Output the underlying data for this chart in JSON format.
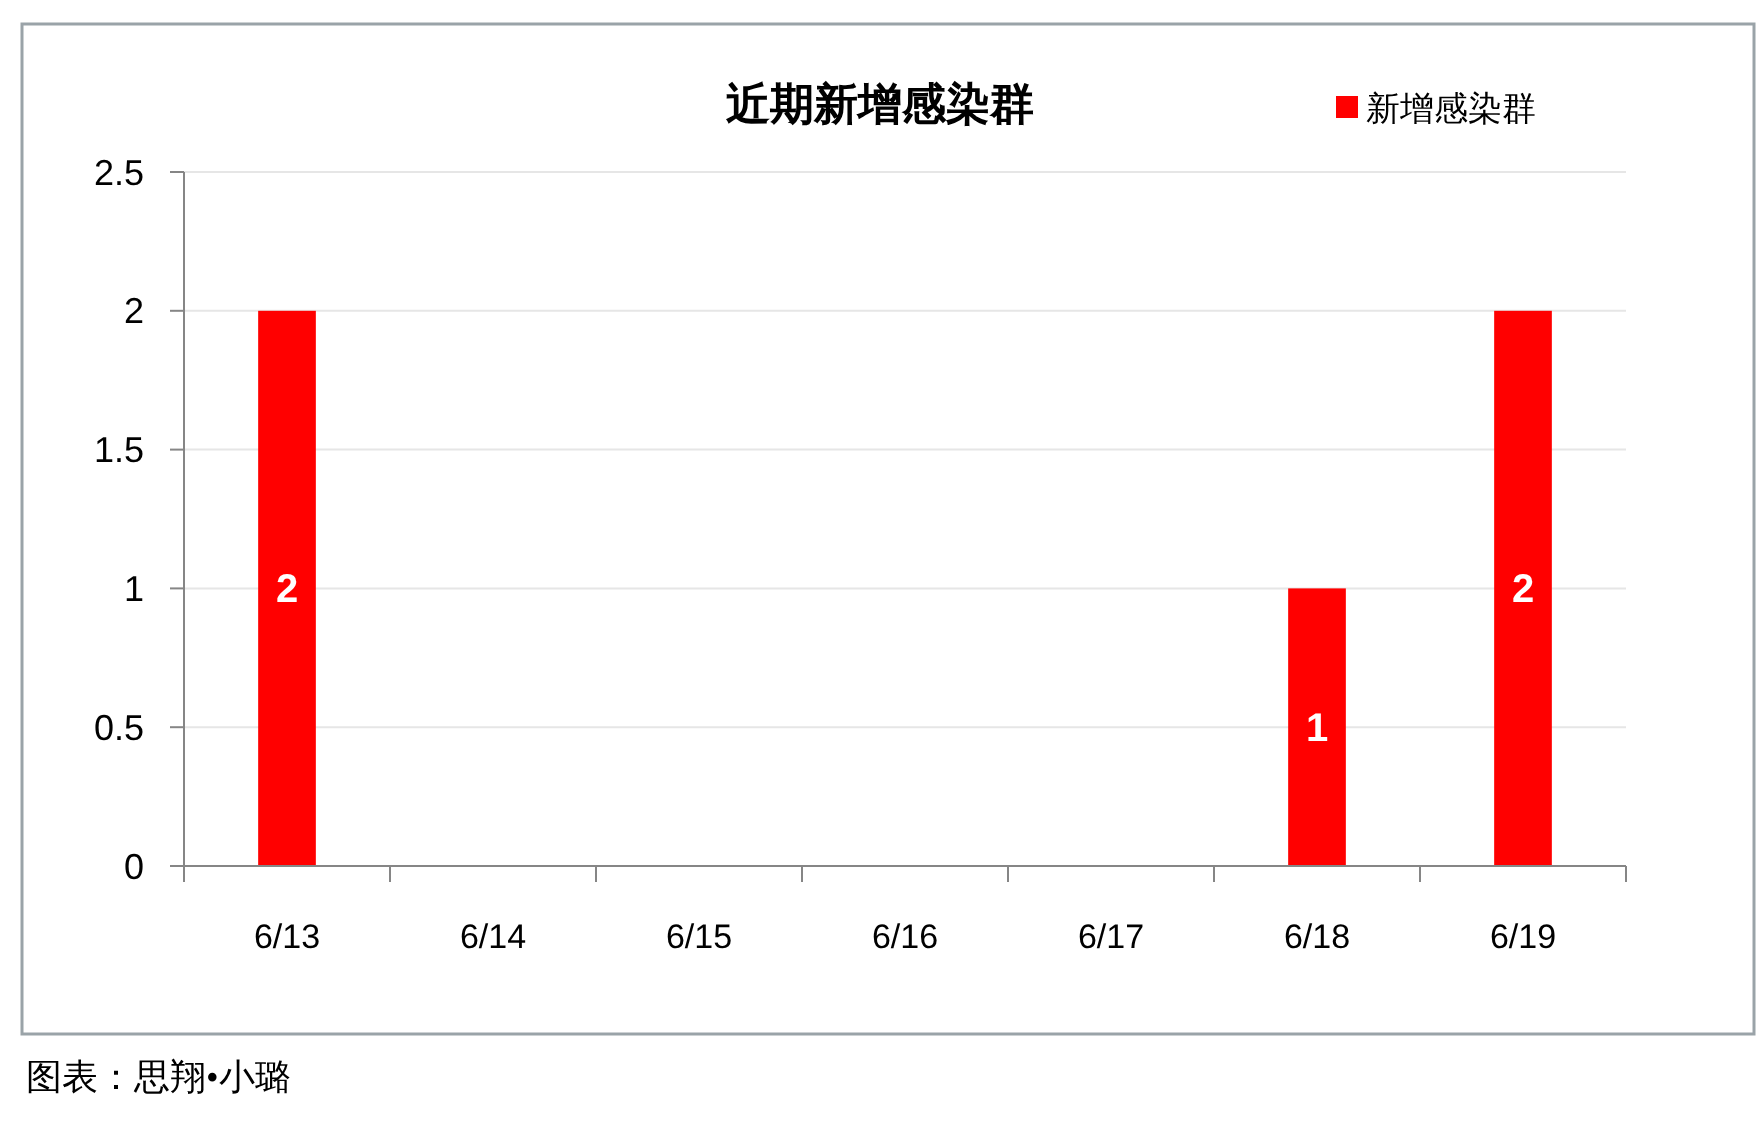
{
  "chart_data": {
    "type": "bar",
    "title": "近期新增感染群",
    "categories": [
      "6/13",
      "6/14",
      "6/15",
      "6/16",
      "6/17",
      "6/18",
      "6/19"
    ],
    "series": [
      {
        "name": "新增感染群",
        "color": "#ff0000",
        "values": [
          2,
          0,
          0,
          0,
          0,
          1,
          2
        ],
        "value_labels": [
          "2",
          null,
          null,
          null,
          null,
          "1",
          "2"
        ]
      }
    ],
    "ylim": [
      0,
      2.5
    ],
    "yticks": [
      0,
      0.5,
      1,
      1.5,
      2,
      2.5
    ],
    "grid": "y",
    "legend": "top right",
    "annotations": [
      "图表：思翔•小璐"
    ]
  }
}
